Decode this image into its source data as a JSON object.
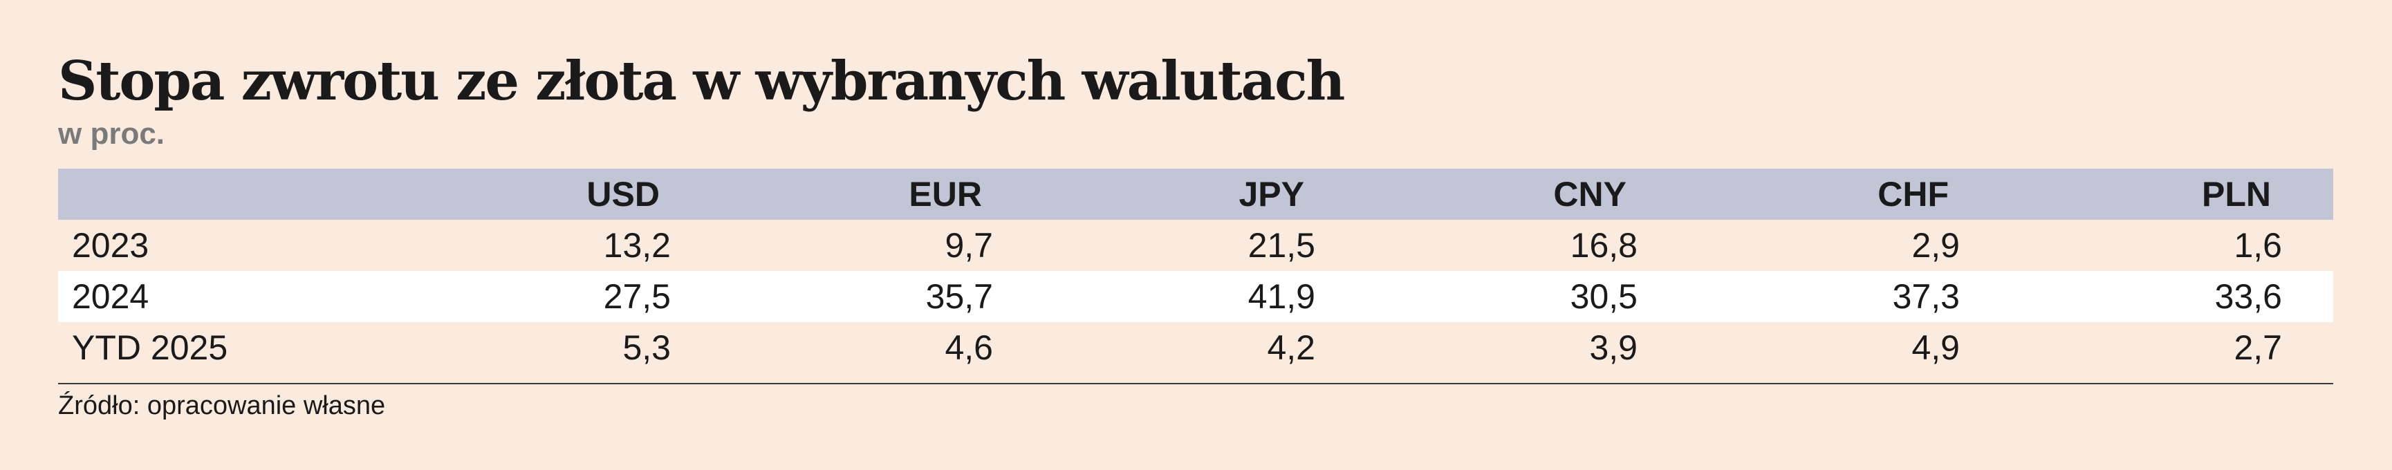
{
  "title": "Stopa zwrotu ze złota w wybranych walutach",
  "subtitle": "w proc.",
  "source": "Źródło: opracowanie własne",
  "colors": {
    "background": "#fbebdf",
    "header_bg": "#c2c5d6",
    "alt_row_bg": "#ffffff",
    "subtitle_text": "#7a7a7a"
  },
  "chart_data": {
    "type": "table",
    "title": "Stopa zwrotu ze złota w wybranych walutach",
    "subtitle": "w proc.",
    "columns": [
      "",
      "USD",
      "EUR",
      "JPY",
      "CNY",
      "CHF",
      "PLN"
    ],
    "rows": [
      {
        "label": "2023",
        "values": [
          "13,2",
          "9,7",
          "21,5",
          "16,8",
          "2,9",
          "1,6"
        ]
      },
      {
        "label": "2024",
        "values": [
          "27,5",
          "35,7",
          "41,9",
          "30,5",
          "37,3",
          "33,6"
        ]
      },
      {
        "label": "YTD 2025",
        "values": [
          "5,3",
          "4,6",
          "4,2",
          "3,9",
          "4,9",
          "2,7"
        ]
      }
    ],
    "source": "Źródło: opracowanie własne"
  }
}
